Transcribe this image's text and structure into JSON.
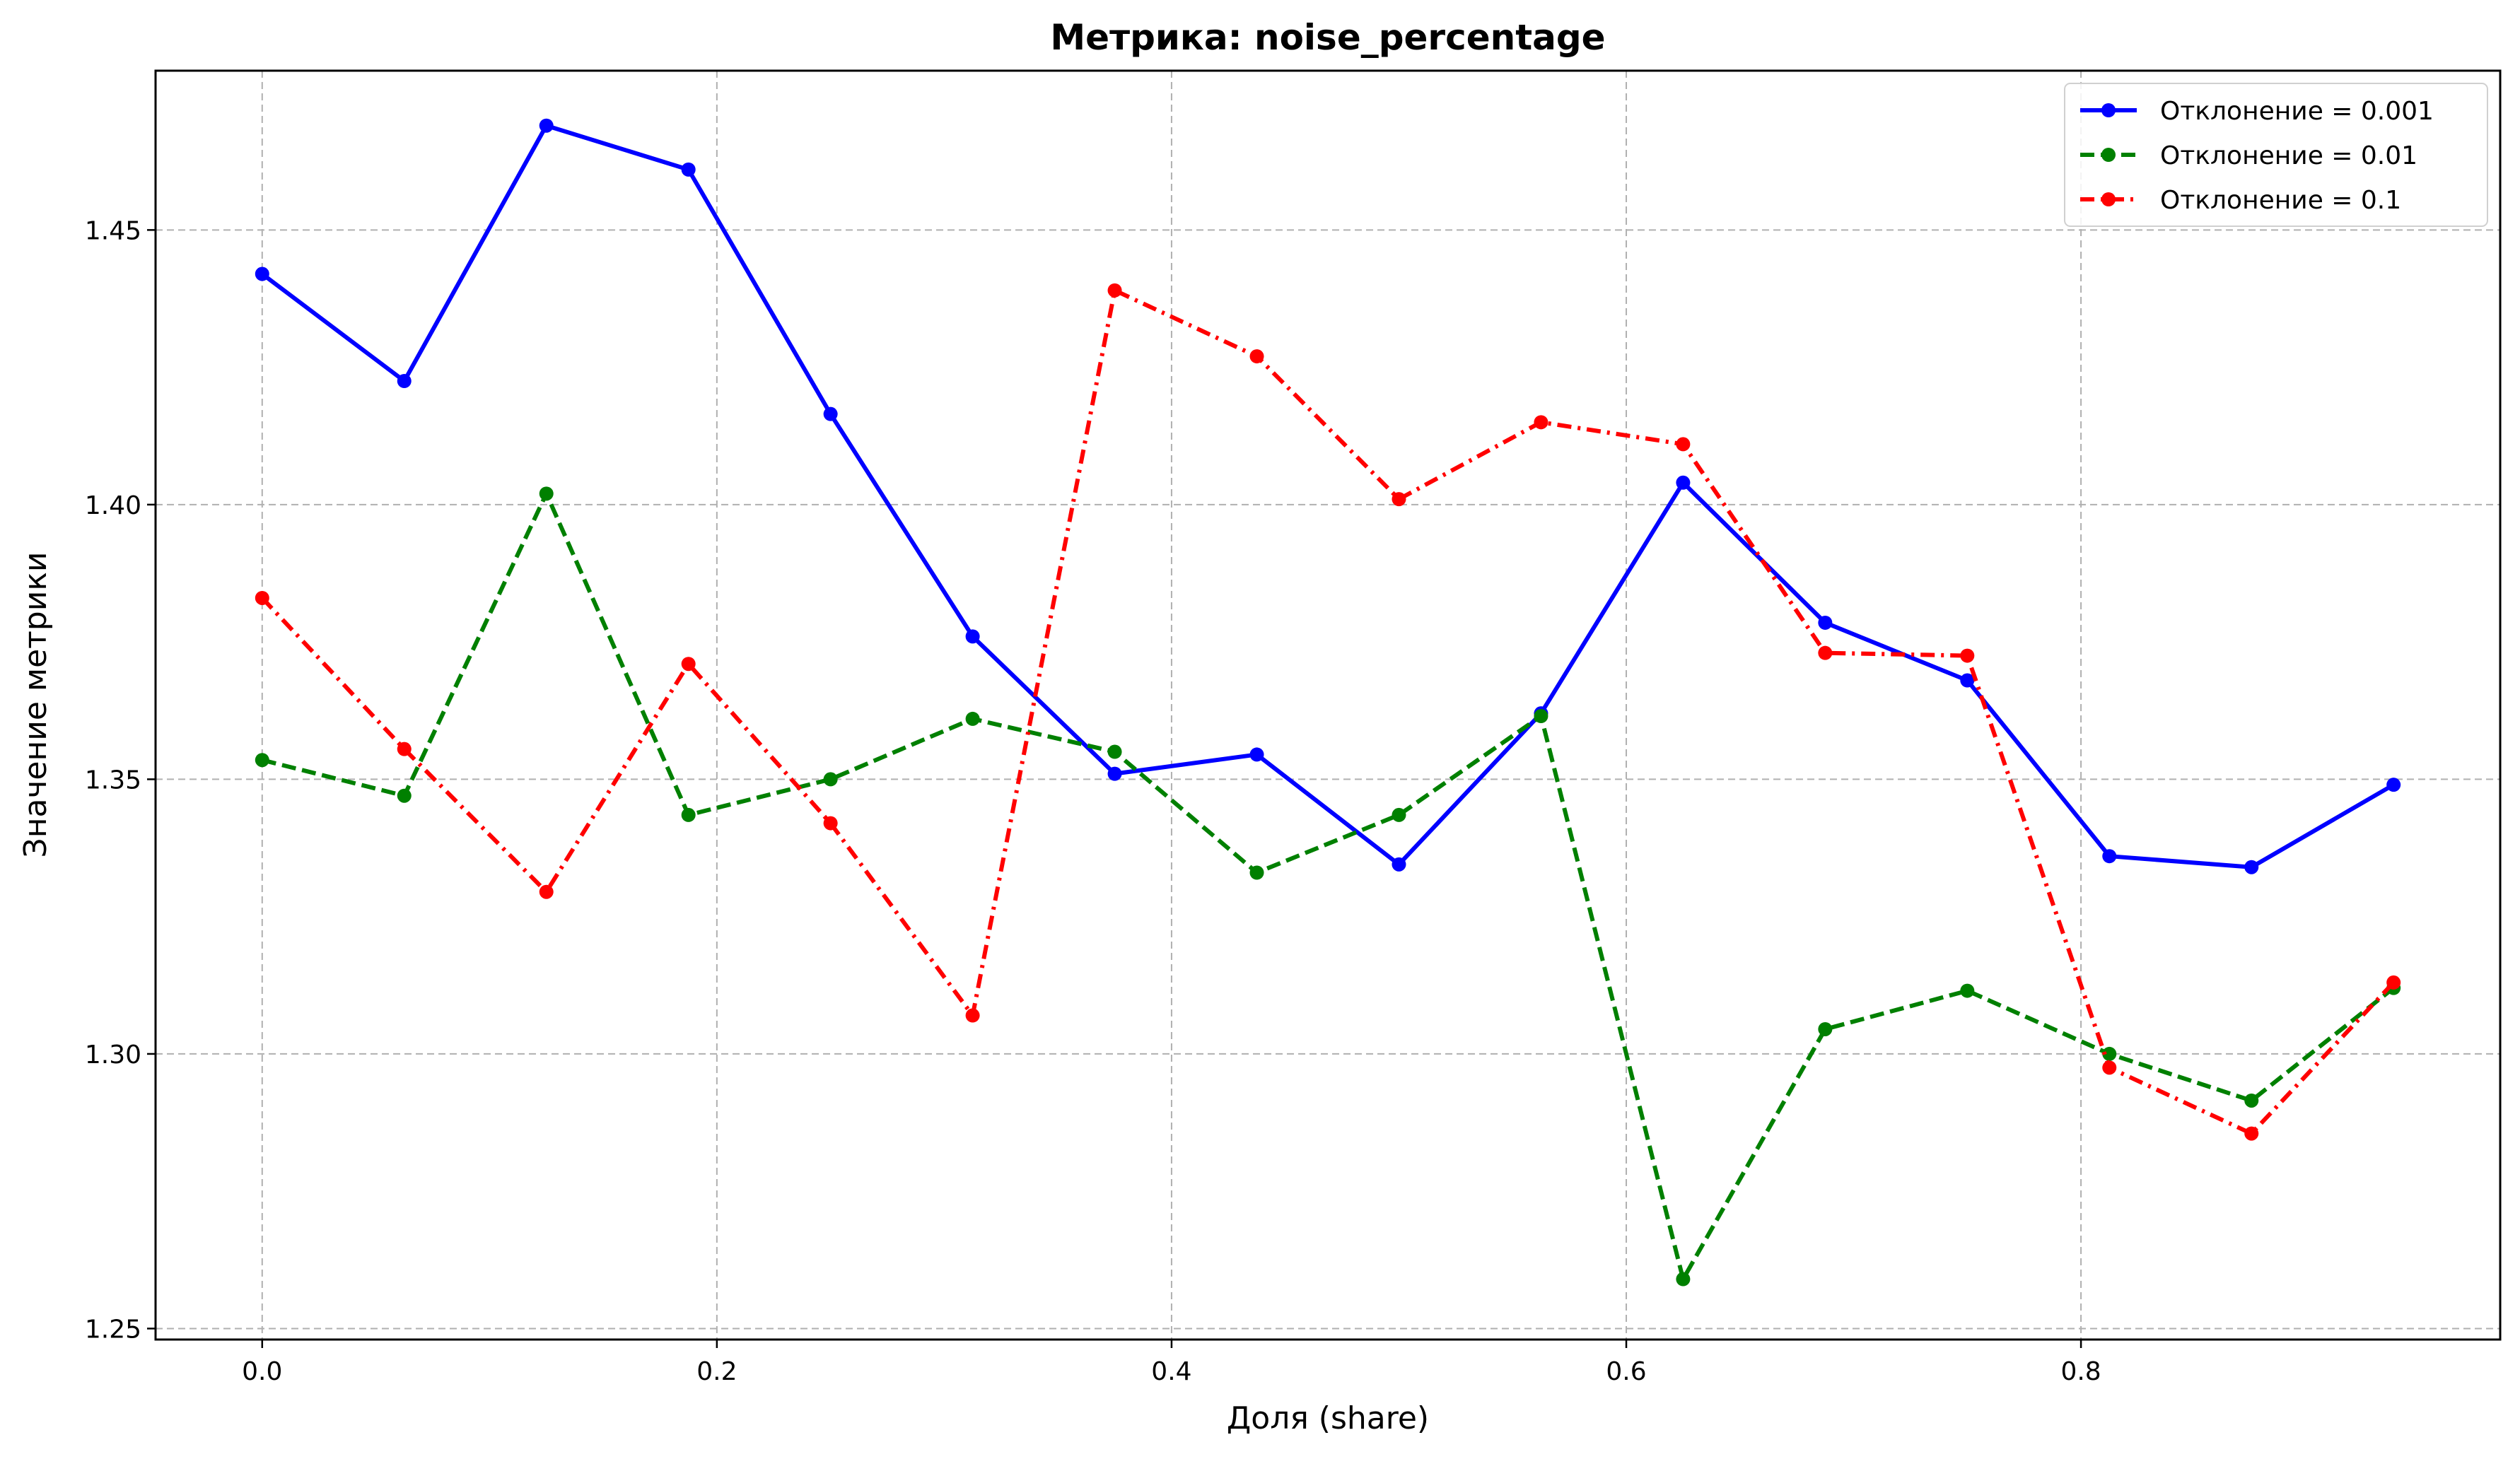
{
  "chart_data": {
    "type": "line",
    "title": "Метрика: noise_percentage",
    "xlabel": "Доля (share)",
    "ylabel": "Значение метрики",
    "xlim": [
      -0.0469,
      0.9844
    ],
    "ylim": [
      1.248,
      1.479
    ],
    "xticks": [
      "0.0",
      "0.2",
      "0.4",
      "0.6",
      "0.8"
    ],
    "yticks": [
      "1.25",
      "1.30",
      "1.35",
      "1.40",
      "1.45"
    ],
    "grid": true,
    "legend_position": "top-right",
    "x": [
      0.0,
      0.0625,
      0.125,
      0.1875,
      0.25,
      0.3125,
      0.375,
      0.4375,
      0.5,
      0.5625,
      0.625,
      0.6875,
      0.75,
      0.8125,
      0.875,
      0.9375
    ],
    "series": [
      {
        "name": "Отклонение = 0.001",
        "color": "#0000ff",
        "line_style": "solid",
        "values": [
          1.442,
          1.4225,
          1.469,
          1.461,
          1.4165,
          1.376,
          1.351,
          1.3545,
          1.3345,
          1.362,
          1.404,
          1.3785,
          1.368,
          1.336,
          1.334,
          1.349
        ]
      },
      {
        "name": "Отклонение = 0.01",
        "color": "#008000",
        "line_style": "dashed",
        "values": [
          1.3535,
          1.347,
          1.402,
          1.3435,
          1.35,
          1.361,
          1.355,
          1.333,
          1.3435,
          1.3615,
          1.259,
          1.3045,
          1.3115,
          1.3,
          1.2915,
          1.312
        ]
      },
      {
        "name": "Отклонение = 0.1",
        "color": "#ff0000",
        "line_style": "dashdot",
        "values": [
          1.383,
          1.3555,
          1.3295,
          1.371,
          1.342,
          1.307,
          1.439,
          1.427,
          1.401,
          1.415,
          1.411,
          1.373,
          1.3725,
          1.2975,
          1.2855,
          1.313
        ]
      }
    ]
  }
}
